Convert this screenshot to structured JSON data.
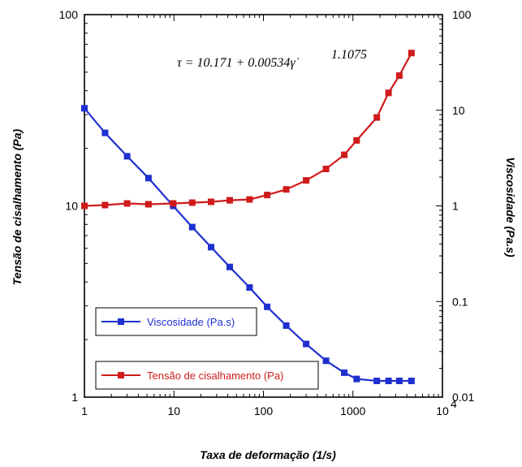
{
  "chart_data": {
    "type": "line",
    "x_scale": "log",
    "y_scale": "log",
    "y2_scale": "log",
    "xlim": [
      1,
      10000
    ],
    "ylim": [
      1,
      100
    ],
    "y2lim": [
      0.01,
      100
    ],
    "xlabel": "Taxa de deformação (1/s)",
    "ylabel": "Tensão de cisalhamento (Pa)",
    "y2label": "Viscosidade (Pa.s)",
    "x_ticks": [
      "1",
      "10",
      "100",
      "1000",
      "10"
    ],
    "x_tick_last_exp": "4",
    "y_ticks": [
      "1",
      "10",
      "100"
    ],
    "y2_ticks": [
      "0.01",
      "0.1",
      "1",
      "10",
      "100"
    ],
    "annotation": {
      "lhs": "τ = 10.171 + 0.00534γ̇",
      "exponent": "1.1075"
    },
    "grid": false,
    "legend_placement": "bottom-left",
    "series": [
      {
        "name": "Viscosidade (Pa.s)",
        "axis": "right",
        "color": "#1f2fd0",
        "marker": "square",
        "x": [
          1,
          1.7,
          3,
          5.2,
          9.8,
          16,
          26,
          42,
          70,
          110,
          180,
          300,
          500,
          800,
          1100,
          1850,
          2500,
          3300,
          4500
        ],
        "values": [
          10.5,
          5.8,
          3.3,
          1.95,
          1.0,
          0.6,
          0.37,
          0.23,
          0.14,
          0.088,
          0.056,
          0.036,
          0.024,
          0.018,
          0.0155,
          0.0148,
          0.0148,
          0.0148,
          0.0148
        ]
      },
      {
        "name": "Tensão de cisalhamento (Pa)",
        "axis": "left",
        "color": "#cf1b1b",
        "marker": "square",
        "x": [
          1,
          1.7,
          3,
          5.2,
          9.8,
          16,
          26,
          42,
          70,
          110,
          180,
          300,
          500,
          800,
          1100,
          1850,
          2500,
          3300,
          4500
        ],
        "values": [
          10.0,
          10.1,
          10.3,
          10.2,
          10.3,
          10.4,
          10.5,
          10.7,
          10.8,
          11.4,
          12.2,
          13.6,
          15.6,
          18.5,
          22,
          29,
          39,
          48,
          63
        ]
      }
    ]
  }
}
